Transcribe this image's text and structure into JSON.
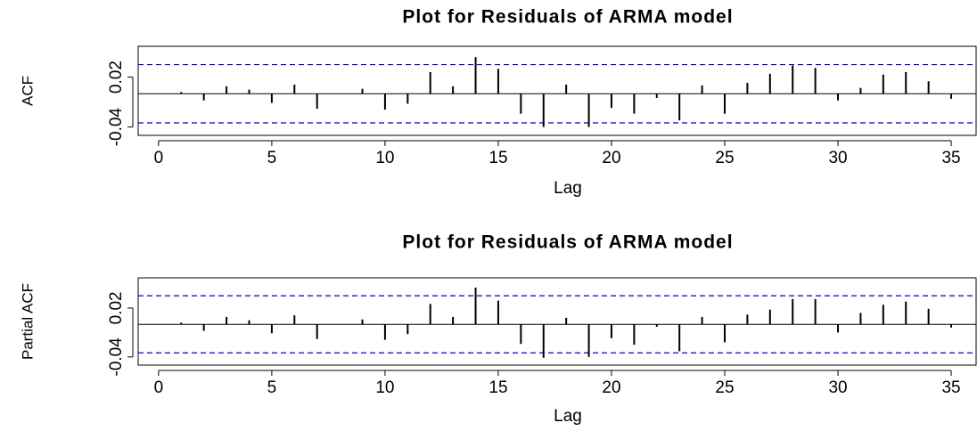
{
  "chart_data": [
    {
      "type": "bar",
      "title": "Plot for Residuals of ARMA model",
      "x_label": "Lag",
      "y_label": "ACF",
      "x": [
        1,
        2,
        3,
        4,
        5,
        6,
        7,
        8,
        9,
        10,
        11,
        12,
        13,
        14,
        15,
        16,
        17,
        18,
        19,
        20,
        21,
        22,
        23,
        24,
        25,
        26,
        27,
        28,
        29,
        30,
        31,
        32,
        33,
        34,
        35
      ],
      "values": [
        0.002,
        -0.008,
        0.009,
        0.005,
        -0.011,
        0.011,
        -0.018,
        0.0,
        0.006,
        -0.019,
        -0.012,
        0.026,
        0.009,
        0.044,
        0.03,
        -0.024,
        -0.04,
        0.011,
        -0.04,
        -0.017,
        -0.024,
        -0.005,
        -0.032,
        0.01,
        -0.024,
        0.013,
        0.024,
        0.034,
        0.031,
        -0.008,
        0.007,
        0.023,
        0.026,
        0.015,
        -0.006
      ],
      "color": "#000000",
      "confidence_limits": [
        -0.035,
        0.035
      ],
      "limit_color": "#0000cc",
      "xlim": [
        -0.9,
        36.1
      ],
      "ylim": [
        -0.05,
        0.057
      ],
      "xticks": [
        0,
        5,
        10,
        15,
        20,
        25,
        30,
        35
      ],
      "yticks": [
        -0.04,
        0.02
      ]
    },
    {
      "type": "bar",
      "title": "Plot for Residuals of ARMA model",
      "x_label": "Lag",
      "y_label": "Partial ACF",
      "x": [
        1,
        2,
        3,
        4,
        5,
        6,
        7,
        8,
        9,
        10,
        11,
        12,
        13,
        14,
        15,
        16,
        17,
        18,
        19,
        20,
        21,
        22,
        23,
        24,
        25,
        26,
        27,
        28,
        29,
        30,
        31,
        32,
        33,
        34,
        35
      ],
      "values": [
        0.002,
        -0.008,
        0.009,
        0.005,
        -0.011,
        0.011,
        -0.018,
        0.0,
        0.006,
        -0.019,
        -0.012,
        0.025,
        0.009,
        0.045,
        0.029,
        -0.024,
        -0.041,
        0.008,
        -0.04,
        -0.017,
        -0.025,
        -0.003,
        -0.033,
        0.009,
        -0.022,
        0.012,
        0.018,
        0.031,
        0.031,
        -0.01,
        0.014,
        0.024,
        0.028,
        0.019,
        -0.004
      ],
      "color": "#000000",
      "confidence_limits": [
        -0.035,
        0.035
      ],
      "limit_color": "#0000cc",
      "xlim": [
        -0.9,
        36.1
      ],
      "ylim": [
        -0.05,
        0.057
      ],
      "xticks": [
        0,
        5,
        10,
        15,
        20,
        25,
        30,
        35
      ],
      "yticks": [
        -0.04,
        0.02
      ]
    }
  ]
}
